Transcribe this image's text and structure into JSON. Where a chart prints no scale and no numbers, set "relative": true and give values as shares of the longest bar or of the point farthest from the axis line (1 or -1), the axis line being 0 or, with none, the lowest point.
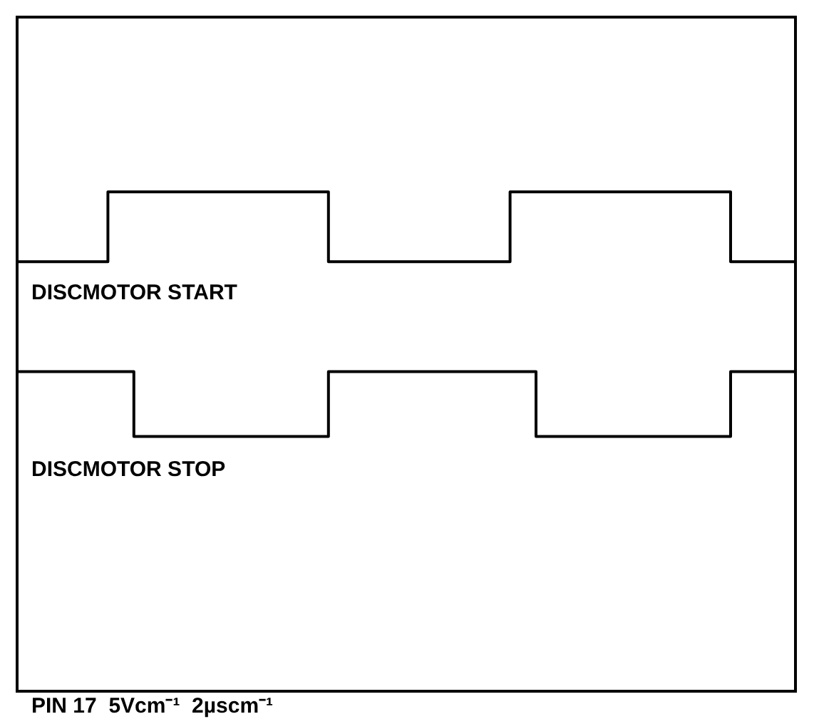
{
  "chart_data": {
    "type": "step",
    "relative": true,
    "marker": "none",
    "line_style": "solid",
    "categories": [
      null,
      null,
      null,
      null,
      null,
      null,
      null,
      null,
      null,
      null,
      null,
      null,
      null,
      null,
      null,
      null,
      null,
      null,
      null,
      null,
      null,
      null,
      null,
      null,
      null,
      null,
      null,
      null,
      null,
      null,
      null,
      null,
      null,
      null,
      null,
      null,
      null,
      null,
      null,
      null,
      null,
      null,
      null,
      null,
      null,
      null,
      null,
      null,
      null,
      null,
      null,
      null,
      null,
      null,
      null,
      null,
      null,
      null,
      null,
      null,
      null
    ],
    "series": [
      {
        "name": "DISCMOTOR START",
        "color": "#000000",
        "values": [
          0.86,
          0.86,
          0.86,
          0.86,
          0.86,
          0.86,
          0.86,
          1,
          1,
          1,
          1,
          1,
          1,
          1,
          1,
          1,
          1,
          1,
          1,
          1,
          1,
          1,
          1,
          1,
          0.86,
          0.86,
          0.86,
          0.86,
          0.86,
          0.86,
          0.86,
          0.86,
          0.86,
          0.86,
          0.86,
          0.86,
          0.86,
          0.86,
          1,
          1,
          1,
          1,
          1,
          1,
          1,
          1,
          1,
          1,
          1,
          1,
          1,
          1,
          1,
          1,
          1,
          0.86,
          0.86,
          0.86,
          0.86,
          0.86,
          0.86
        ]
      },
      {
        "name": "DISCMOTOR STOP",
        "color": "#000000",
        "values": [
          0.64,
          0.64,
          0.64,
          0.64,
          0.64,
          0.64,
          0.64,
          0.64,
          0.64,
          0.51,
          0.51,
          0.51,
          0.51,
          0.51,
          0.51,
          0.51,
          0.51,
          0.51,
          0.51,
          0.51,
          0.51,
          0.51,
          0.51,
          0.51,
          0.64,
          0.64,
          0.64,
          0.64,
          0.64,
          0.64,
          0.64,
          0.64,
          0.64,
          0.64,
          0.64,
          0.64,
          0.64,
          0.64,
          0.64,
          0.64,
          0.51,
          0.51,
          0.51,
          0.51,
          0.51,
          0.51,
          0.51,
          0.51,
          0.51,
          0.51,
          0.51,
          0.51,
          0.51,
          0.51,
          0.51,
          0.64,
          0.64,
          0.64,
          0.64,
          0.64,
          0.64
        ]
      }
    ],
    "annotations": [
      "PIN 17  5Vcm⁻¹  2µscm⁻¹"
    ]
  }
}
